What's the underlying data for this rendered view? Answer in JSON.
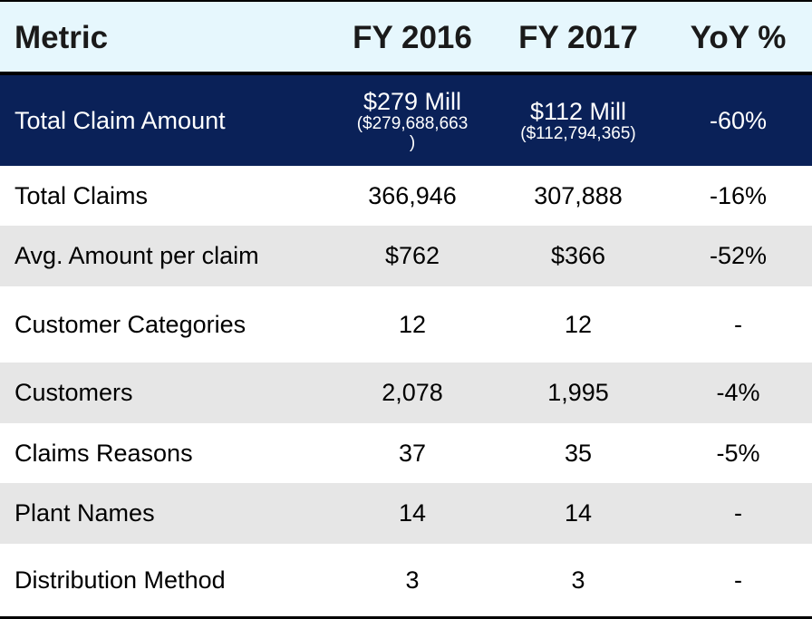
{
  "header": {
    "metric": "Metric",
    "fy2016": "FY 2016",
    "fy2017": "FY 2017",
    "yoy": "YoY %"
  },
  "highlight_row": {
    "metric": "Total Claim Amount",
    "fy2016_main": "$279 Mill",
    "fy2016_detail_line1": "($279,688,663",
    "fy2016_detail_line2": ")",
    "fy2017_main": "$112 Mill",
    "fy2017_detail": "($112,794,365)",
    "yoy": "-60%"
  },
  "rows": [
    {
      "metric": "Total Claims",
      "fy2016": "366,946",
      "fy2017": "307,888",
      "yoy": "-16%"
    },
    {
      "metric": "Avg. Amount per claim",
      "fy2016": "$762",
      "fy2017": "$366",
      "yoy": "-52%"
    },
    {
      "metric": "Customer Categories",
      "fy2016": "12",
      "fy2017": "12",
      "yoy": "-"
    },
    {
      "metric": "Customers",
      "fy2016": "2,078",
      "fy2017": "1,995",
      "yoy": "-4%"
    },
    {
      "metric": "Claims Reasons",
      "fy2016": "37",
      "fy2017": "35",
      "yoy": "-5%"
    },
    {
      "metric": "Plant Names",
      "fy2016": "14",
      "fy2017": "14",
      "yoy": "-"
    },
    {
      "metric": "Distribution Method",
      "fy2016": "3",
      "fy2017": "3",
      "yoy": "-"
    }
  ],
  "colors": {
    "header_bg": "#e6f7fd",
    "highlight_bg": "#0a2158",
    "stripe_bg": "#e6e6e6"
  }
}
